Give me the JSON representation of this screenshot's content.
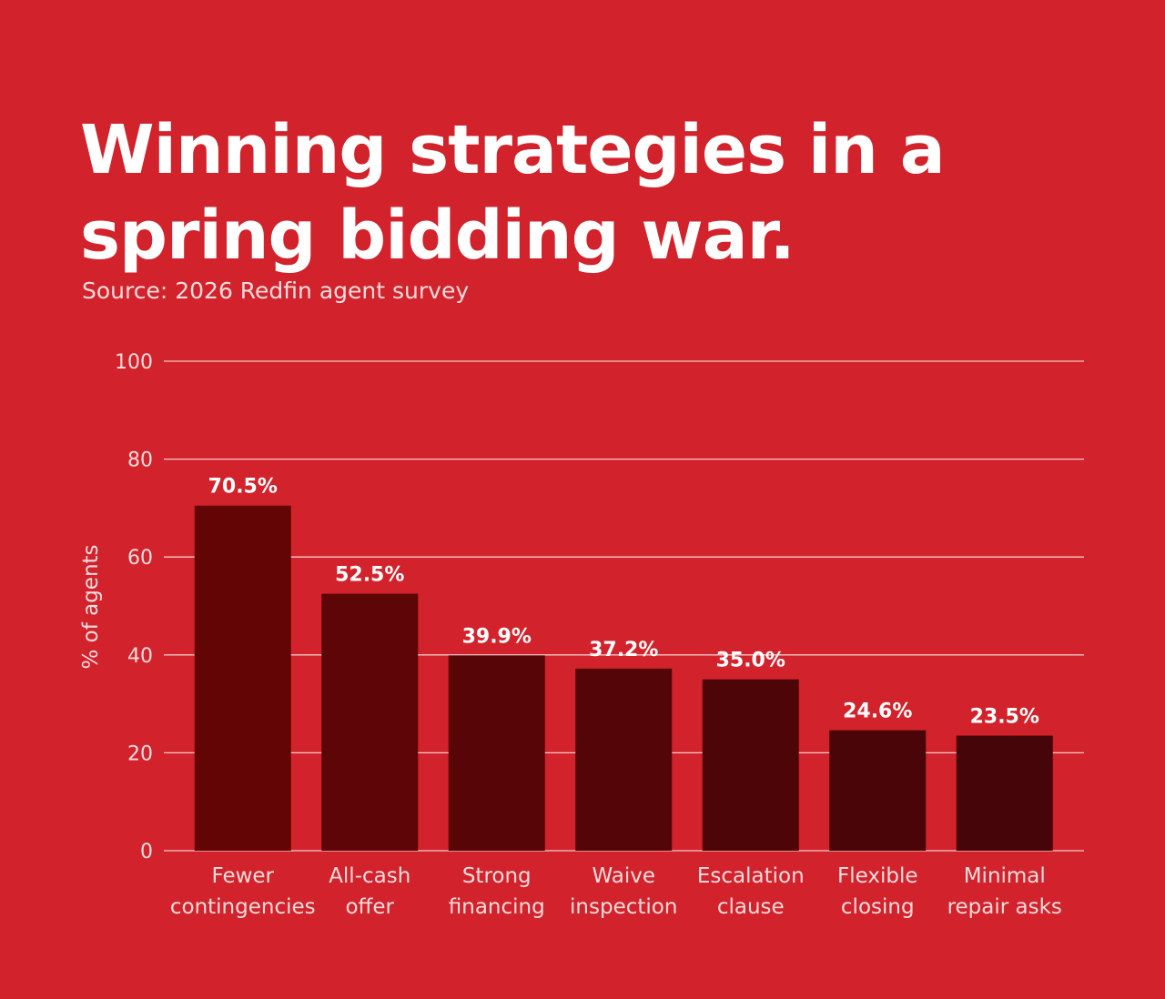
{
  "chart_data": {
    "type": "bar",
    "title": "Winning strategies in a spring bidding war.",
    "subtitle": "Source: 2026 Redfin agent survey",
    "xlabel": "",
    "ylabel": "% of agents",
    "ylim": [
      0,
      100
    ],
    "yticks": [
      0,
      20,
      40,
      60,
      80,
      100
    ],
    "grid": true,
    "categories": [
      [
        "Fewer",
        "contingencies"
      ],
      [
        "All-cash",
        "offer"
      ],
      [
        "Strong",
        "financing"
      ],
      [
        "Waive",
        "inspection"
      ],
      [
        "Escalation",
        "clause"
      ],
      [
        "Flexible",
        "closing"
      ],
      [
        "Minimal",
        "repair asks"
      ]
    ],
    "values": [
      70.5,
      52.5,
      39.9,
      37.2,
      35.0,
      24.6,
      23.5
    ],
    "data_labels": [
      "70.5%",
      "52.5%",
      "39.9%",
      "37.2%",
      "35.0%",
      "24.6%",
      "23.5%"
    ],
    "colors": {
      "background": "#d2222b",
      "bars": [
        "#640505",
        "#5e0507",
        "#580508",
        "#530508",
        "#4e0508",
        "#490508",
        "#460508"
      ],
      "grid": "#f3c9cb"
    }
  }
}
